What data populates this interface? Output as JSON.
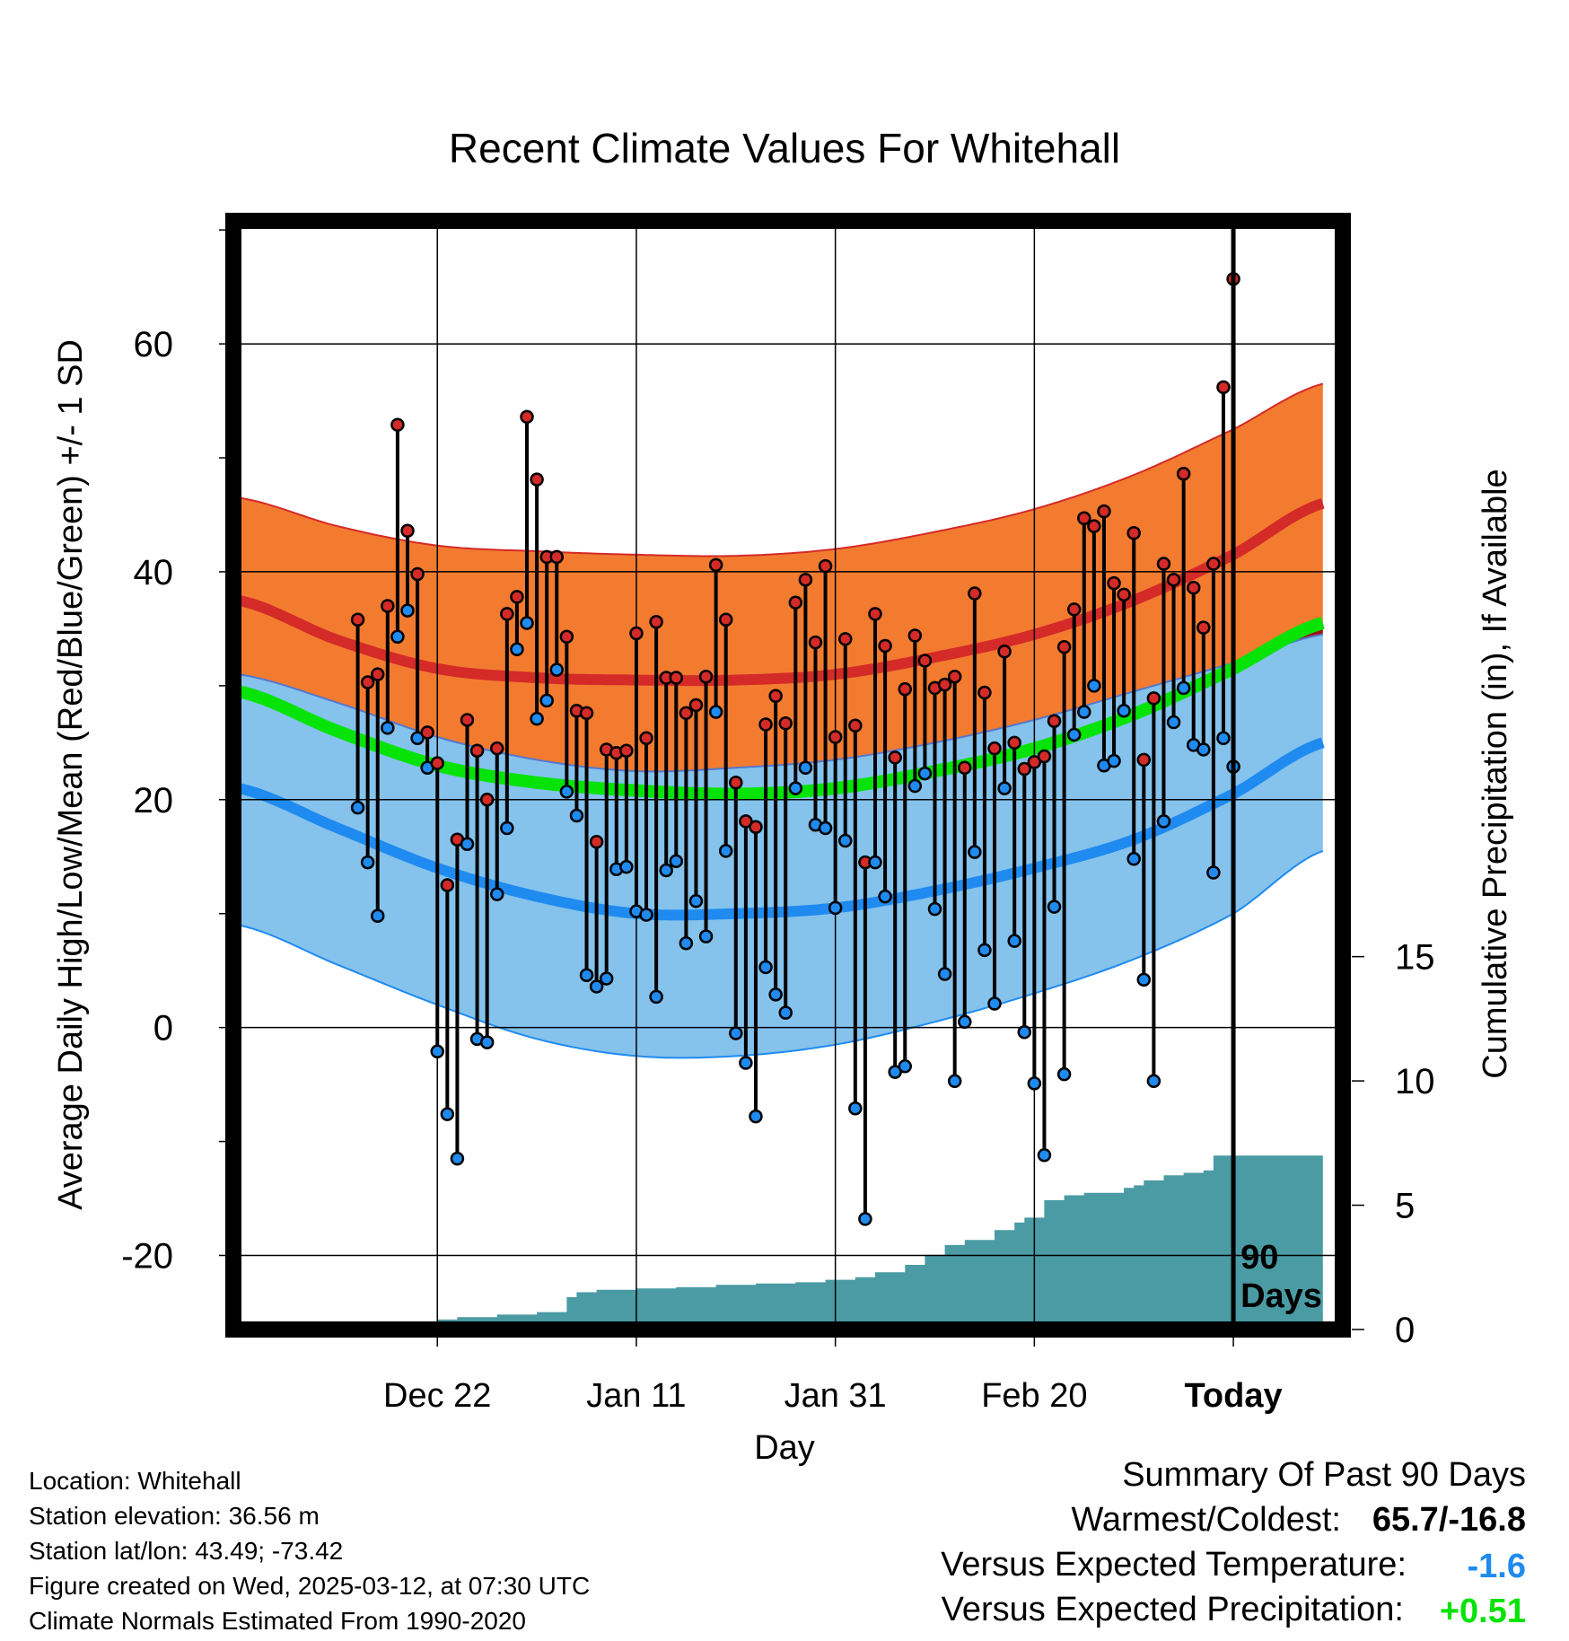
{
  "chart_data": {
    "type": "line",
    "title": "Recent Climate Values For Whitehall",
    "xlabel": "Day",
    "ylabel": "Average Daily High/Low/Mean (Red/Blue/Green) +/- 1 SD",
    "y2label": "Cumulative Precipitation (in), If Available",
    "ylim": [
      -26.5,
      70.8
    ],
    "y2lim": [
      0,
      44.6
    ],
    "xlim": [
      -100.5,
      11
    ],
    "x_units": "days relative to today",
    "grid": true,
    "x_ticks": [
      {
        "x": -80,
        "label": "Dec 22"
      },
      {
        "x": -60,
        "label": "Jan 11"
      },
      {
        "x": -40,
        "label": "Jan 31"
      },
      {
        "x": -20,
        "label": "Feb 20"
      },
      {
        "x": 0,
        "label": "Today"
      }
    ],
    "y_ticks": [
      -20,
      0,
      20,
      40,
      60
    ],
    "y2_ticks": [
      0,
      5,
      10,
      15
    ],
    "today_marker": {
      "x": 0,
      "label_line1": "90",
      "label_line2": "Days"
    },
    "colors": {
      "high_band": "#f27b30",
      "high_line": "#d42a28",
      "low_band": "#85c2ec",
      "low_line": "#1f8bf0",
      "overlap_band": "#9c1717",
      "mean_line": "#07e307",
      "precip": "#4a9ba4",
      "high_dot": "#d42a28",
      "low_dot": "#1f8bf0"
    },
    "normals": {
      "x": [
        -100,
        -90,
        -80,
        -70,
        -60,
        -50,
        -40,
        -30,
        -20,
        -10,
        0,
        9
      ],
      "high_mean": [
        37.5,
        34,
        31.5,
        30.7,
        30.5,
        30.5,
        31,
        32.5,
        34.5,
        37.5,
        41.5,
        46
      ],
      "high_upper": [
        46.5,
        44,
        42.3,
        41.8,
        41.5,
        41.4,
        42,
        43.5,
        45.5,
        48.5,
        52.5,
        56.5
      ],
      "high_lower": [
        28.5,
        24.5,
        21.5,
        20.2,
        19.5,
        19.5,
        20,
        21.5,
        23.5,
        26.5,
        30.5,
        35.5
      ],
      "low_mean": [
        21,
        17.5,
        14,
        11.5,
        10,
        10,
        10.5,
        12,
        14,
        16.5,
        20.5,
        25
      ],
      "low_upper": [
        31,
        28.5,
        25.5,
        23.5,
        22.5,
        22.8,
        23.5,
        25,
        27,
        29.5,
        32,
        34.5
      ],
      "low_lower": [
        9,
        5.5,
        2,
        -1,
        -2.5,
        -2.5,
        -1.5,
        0.5,
        3,
        6,
        10,
        15.5
      ],
      "avg_mean": [
        29.5,
        26,
        23,
        21.5,
        20.8,
        20.5,
        21,
        22.5,
        24.5,
        27.5,
        31.5,
        35.5
      ]
    },
    "series": [
      {
        "name": "High",
        "values": [
          35.8,
          30.3,
          31.0,
          37.0,
          52.9,
          43.6,
          39.8,
          25.9,
          23.2,
          12.5,
          16.5,
          27.0,
          24.3,
          20.0,
          24.5,
          36.3,
          37.8,
          53.6,
          48.1,
          41.3,
          41.3,
          34.3,
          27.8,
          27.6,
          16.3,
          24.4,
          24.1,
          24.3,
          34.6,
          25.4,
          35.6,
          30.7,
          30.7,
          27.6,
          28.3,
          30.8,
          40.6,
          35.8,
          21.5,
          18.1,
          17.6,
          26.6,
          29.1,
          26.7,
          37.3,
          39.3,
          33.8,
          40.5,
          25.5,
          34.1,
          26.5,
          14.5,
          36.3,
          33.5,
          23.7,
          29.7,
          34.4,
          32.2,
          29.8,
          30.1,
          30.8,
          22.8,
          38.1,
          29.4,
          24.5,
          33.0,
          25.0,
          22.7,
          23.3,
          23.8,
          26.9,
          33.4,
          36.7,
          44.7,
          44.0,
          45.3,
          39.0,
          38.0,
          43.4,
          23.5,
          28.9,
          40.7,
          39.3,
          48.6,
          38.6,
          35.1,
          40.7,
          56.2,
          65.7
        ],
        "low": null
      },
      {
        "name": "Low",
        "values": [
          19.3,
          14.5,
          9.8,
          26.3,
          34.3,
          36.6,
          25.4,
          22.8,
          -2.1,
          -7.6,
          -11.5,
          16.1,
          -1.0,
          -1.3,
          11.7,
          17.5,
          33.2,
          35.5,
          27.1,
          28.7,
          31.4,
          20.7,
          18.6,
          4.6,
          3.6,
          4.3,
          13.9,
          14.1,
          10.2,
          9.9,
          2.7,
          13.8,
          14.6,
          7.4,
          11.1,
          8.0,
          27.7,
          15.5,
          -0.5,
          -3.1,
          -7.8,
          5.3,
          2.9,
          1.3,
          21.0,
          22.8,
          17.8,
          17.5,
          10.5,
          16.4,
          -7.1,
          -16.8,
          14.5,
          11.5,
          -3.9,
          -3.4,
          21.2,
          22.3,
          10.4,
          4.7,
          -4.7,
          0.5,
          15.4,
          6.8,
          2.1,
          21.0,
          7.6,
          -0.4,
          -4.9,
          -11.2,
          10.6,
          -4.1,
          25.7,
          27.7,
          30.0,
          23.0,
          23.4,
          27.8,
          14.8,
          4.2,
          -4.7,
          18.1,
          26.8,
          29.8,
          24.8,
          24.4,
          13.6,
          25.4,
          22.9
        ]
      }
    ],
    "precip_cumulative": {
      "x": [
        -100,
        -85,
        -83,
        -80,
        -78,
        -74,
        -70,
        -67,
        -66,
        -64,
        -60,
        -56,
        -52,
        -48,
        -44,
        -41,
        -38,
        -36,
        -33,
        -31,
        -29,
        -27,
        -24,
        -22,
        -21,
        -19,
        -17,
        -15,
        -13,
        -11,
        -10,
        -9,
        -7,
        -5,
        -3,
        -2,
        9
      ],
      "values": [
        0,
        0,
        0.2,
        0.4,
        0.5,
        0.6,
        0.7,
        1.3,
        1.5,
        1.6,
        1.65,
        1.7,
        1.8,
        1.85,
        1.9,
        2.0,
        2.1,
        2.3,
        2.6,
        3.0,
        3.4,
        3.6,
        4.0,
        4.3,
        4.5,
        5.2,
        5.4,
        5.5,
        5.5,
        5.7,
        5.8,
        6.0,
        6.2,
        6.3,
        6.4,
        7.0,
        7.0
      ]
    }
  },
  "footer": {
    "location": "Location: Whitehall",
    "elevation": "Station elevation: 36.56 m",
    "latlon": "Station lat/lon: 43.49; -73.42",
    "created": "Figure created on Wed, 2025-03-12, at 07:30 UTC",
    "normals": "Climate Normals Estimated From 1990-2020"
  },
  "summary": {
    "heading": "Summary Of Past 90 Days",
    "warmest_label": "Warmest/Coldest:",
    "warmest_value": "65.7/-16.8",
    "temp_label": "Versus Expected Temperature:",
    "temp_value": "-1.6",
    "temp_color": "#1f8bf0",
    "precip_label": "Versus Expected Precipitation:",
    "precip_value": "+0.51",
    "precip_color": "#07e307"
  }
}
